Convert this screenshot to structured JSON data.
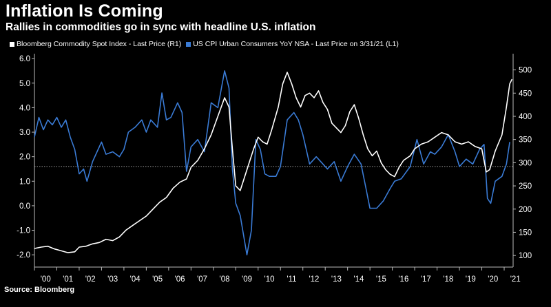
{
  "header": {
    "title": "Inflation Is Coming",
    "subtitle": "Rallies in commodities go in sync with headline U.S. inflation"
  },
  "source": "Source: Bloomberg",
  "chart_data": {
    "type": "line",
    "title": "Inflation Is Coming",
    "subtitle": "Rallies in commodities go in sync with headline U.S. inflation",
    "x_range": [
      2000.0,
      2021.4
    ],
    "x_tick_values": [
      2000,
      2001,
      2002,
      2003,
      2004,
      2005,
      2006,
      2007,
      2008,
      2009,
      2010,
      2011,
      2012,
      2013,
      2014,
      2015,
      2016,
      2017,
      2018,
      2019,
      2020,
      2021
    ],
    "x_tick_labels": [
      "'00",
      "'01",
      "'02",
      "'03",
      "'04",
      "'05",
      "'06",
      "'07",
      "'08",
      "'09",
      "'10",
      "'11",
      "'12",
      "'13",
      "'14",
      "'15",
      "'16",
      "'17",
      "'18",
      "'19",
      "'20",
      "'21"
    ],
    "y_left": {
      "range": [
        -2.5,
        6.2
      ],
      "ticks": [
        "6.0",
        "5.0",
        "4.0",
        "3.0",
        "2.0",
        "1.0",
        "0.0",
        "-1.0",
        "-2.0"
      ],
      "tick_values": [
        6,
        5,
        4,
        3,
        2,
        1,
        0,
        -1,
        -2
      ]
    },
    "y_right": {
      "range": [
        75,
        535
      ],
      "ticks": [
        "500",
        "450",
        "400",
        "350",
        "300",
        "250",
        "200",
        "150",
        "100"
      ],
      "tick_values": [
        500,
        450,
        400,
        350,
        300,
        250,
        200,
        150,
        100
      ]
    },
    "reference_line": {
      "axis": "left",
      "value": 1.6,
      "style": "dotted"
    },
    "series": [
      {
        "name": "Bloomberg Commodity Spot Index - Last Price (R1)",
        "axis": "right",
        "color": "#ffffff",
        "points": [
          [
            2000.0,
            115
          ],
          [
            2000.3,
            118
          ],
          [
            2000.6,
            120
          ],
          [
            2000.9,
            114
          ],
          [
            2001.2,
            110
          ],
          [
            2001.5,
            106
          ],
          [
            2001.8,
            108
          ],
          [
            2002.0,
            118
          ],
          [
            2002.3,
            120
          ],
          [
            2002.6,
            125
          ],
          [
            2002.9,
            128
          ],
          [
            2003.2,
            135
          ],
          [
            2003.5,
            132
          ],
          [
            2003.8,
            140
          ],
          [
            2004.1,
            155
          ],
          [
            2004.4,
            165
          ],
          [
            2004.7,
            175
          ],
          [
            2005.0,
            185
          ],
          [
            2005.3,
            200
          ],
          [
            2005.6,
            215
          ],
          [
            2005.9,
            225
          ],
          [
            2006.2,
            245
          ],
          [
            2006.5,
            258
          ],
          [
            2006.8,
            265
          ],
          [
            2007.0,
            290
          ],
          [
            2007.3,
            305
          ],
          [
            2007.6,
            330
          ],
          [
            2007.9,
            360
          ],
          [
            2008.2,
            400
          ],
          [
            2008.5,
            440
          ],
          [
            2008.7,
            420
          ],
          [
            2008.85,
            330
          ],
          [
            2009.0,
            250
          ],
          [
            2009.2,
            240
          ],
          [
            2009.4,
            270
          ],
          [
            2009.6,
            300
          ],
          [
            2009.8,
            330
          ],
          [
            2010.0,
            355
          ],
          [
            2010.2,
            345
          ],
          [
            2010.4,
            340
          ],
          [
            2010.6,
            370
          ],
          [
            2010.9,
            420
          ],
          [
            2011.1,
            470
          ],
          [
            2011.3,
            495
          ],
          [
            2011.5,
            470
          ],
          [
            2011.7,
            440
          ],
          [
            2011.9,
            420
          ],
          [
            2012.1,
            445
          ],
          [
            2012.3,
            450
          ],
          [
            2012.5,
            440
          ],
          [
            2012.7,
            455
          ],
          [
            2012.9,
            430
          ],
          [
            2013.1,
            415
          ],
          [
            2013.3,
            385
          ],
          [
            2013.5,
            375
          ],
          [
            2013.7,
            365
          ],
          [
            2013.9,
            380
          ],
          [
            2014.1,
            410
          ],
          [
            2014.3,
            425
          ],
          [
            2014.5,
            395
          ],
          [
            2014.7,
            360
          ],
          [
            2014.9,
            330
          ],
          [
            2015.1,
            315
          ],
          [
            2015.3,
            325
          ],
          [
            2015.5,
            300
          ],
          [
            2015.7,
            285
          ],
          [
            2015.9,
            275
          ],
          [
            2016.1,
            270
          ],
          [
            2016.3,
            290
          ],
          [
            2016.5,
            305
          ],
          [
            2016.8,
            315
          ],
          [
            2017.0,
            330
          ],
          [
            2017.3,
            340
          ],
          [
            2017.6,
            345
          ],
          [
            2017.9,
            355
          ],
          [
            2018.2,
            365
          ],
          [
            2018.5,
            360
          ],
          [
            2018.8,
            345
          ],
          [
            2019.1,
            340
          ],
          [
            2019.4,
            345
          ],
          [
            2019.7,
            335
          ],
          [
            2020.0,
            330
          ],
          [
            2020.2,
            280
          ],
          [
            2020.35,
            285
          ],
          [
            2020.6,
            325
          ],
          [
            2020.9,
            360
          ],
          [
            2021.1,
            420
          ],
          [
            2021.25,
            470
          ],
          [
            2021.35,
            480
          ]
        ]
      },
      {
        "name": "US CPI Urban Consumers YoY NSA - Last Price on 3/31/21 (L1)",
        "axis": "left",
        "color": "#3a7bd5",
        "points": [
          [
            2000.0,
            2.8
          ],
          [
            2000.2,
            3.6
          ],
          [
            2000.4,
            3.1
          ],
          [
            2000.6,
            3.5
          ],
          [
            2000.8,
            3.3
          ],
          [
            2001.0,
            3.6
          ],
          [
            2001.2,
            3.2
          ],
          [
            2001.4,
            3.5
          ],
          [
            2001.6,
            2.8
          ],
          [
            2001.8,
            2.3
          ],
          [
            2002.0,
            1.3
          ],
          [
            2002.2,
            1.5
          ],
          [
            2002.35,
            1.0
          ],
          [
            2002.6,
            1.8
          ],
          [
            2002.8,
            2.2
          ],
          [
            2003.0,
            2.6
          ],
          [
            2003.2,
            2.1
          ],
          [
            2003.5,
            2.2
          ],
          [
            2003.8,
            2.0
          ],
          [
            2004.0,
            2.3
          ],
          [
            2004.2,
            3.0
          ],
          [
            2004.5,
            3.2
          ],
          [
            2004.8,
            3.5
          ],
          [
            2005.0,
            3.0
          ],
          [
            2005.2,
            3.5
          ],
          [
            2005.5,
            3.2
          ],
          [
            2005.7,
            4.6
          ],
          [
            2005.9,
            3.5
          ],
          [
            2006.1,
            3.6
          ],
          [
            2006.4,
            4.2
          ],
          [
            2006.6,
            3.8
          ],
          [
            2006.8,
            1.4
          ],
          [
            2007.0,
            2.4
          ],
          [
            2007.3,
            2.7
          ],
          [
            2007.6,
            2.2
          ],
          [
            2007.9,
            4.2
          ],
          [
            2008.2,
            4.0
          ],
          [
            2008.5,
            5.5
          ],
          [
            2008.7,
            4.8
          ],
          [
            2008.85,
            1.5
          ],
          [
            2009.0,
            0.1
          ],
          [
            2009.2,
            -0.4
          ],
          [
            2009.5,
            -2.0
          ],
          [
            2009.7,
            -1.0
          ],
          [
            2009.9,
            2.7
          ],
          [
            2010.1,
            2.3
          ],
          [
            2010.3,
            1.3
          ],
          [
            2010.5,
            1.2
          ],
          [
            2010.8,
            1.2
          ],
          [
            2011.0,
            1.6
          ],
          [
            2011.3,
            3.5
          ],
          [
            2011.6,
            3.8
          ],
          [
            2011.8,
            3.5
          ],
          [
            2012.0,
            2.9
          ],
          [
            2012.3,
            1.7
          ],
          [
            2012.6,
            2.0
          ],
          [
            2012.9,
            1.7
          ],
          [
            2013.1,
            1.5
          ],
          [
            2013.4,
            1.8
          ],
          [
            2013.7,
            1.0
          ],
          [
            2014.0,
            1.6
          ],
          [
            2014.3,
            2.1
          ],
          [
            2014.6,
            1.7
          ],
          [
            2014.8,
            0.8
          ],
          [
            2015.0,
            -0.1
          ],
          [
            2015.3,
            -0.1
          ],
          [
            2015.6,
            0.2
          ],
          [
            2015.9,
            0.7
          ],
          [
            2016.1,
            1.0
          ],
          [
            2016.4,
            1.1
          ],
          [
            2016.8,
            1.6
          ],
          [
            2017.1,
            2.7
          ],
          [
            2017.4,
            1.7
          ],
          [
            2017.7,
            2.2
          ],
          [
            2017.9,
            2.1
          ],
          [
            2018.2,
            2.4
          ],
          [
            2018.5,
            2.9
          ],
          [
            2018.8,
            2.2
          ],
          [
            2019.0,
            1.6
          ],
          [
            2019.3,
            1.9
          ],
          [
            2019.6,
            1.7
          ],
          [
            2019.9,
            2.3
          ],
          [
            2020.1,
            2.5
          ],
          [
            2020.25,
            0.3
          ],
          [
            2020.4,
            0.1
          ],
          [
            2020.6,
            1.0
          ],
          [
            2020.9,
            1.2
          ],
          [
            2021.1,
            1.7
          ],
          [
            2021.25,
            2.6
          ]
        ]
      }
    ]
  }
}
